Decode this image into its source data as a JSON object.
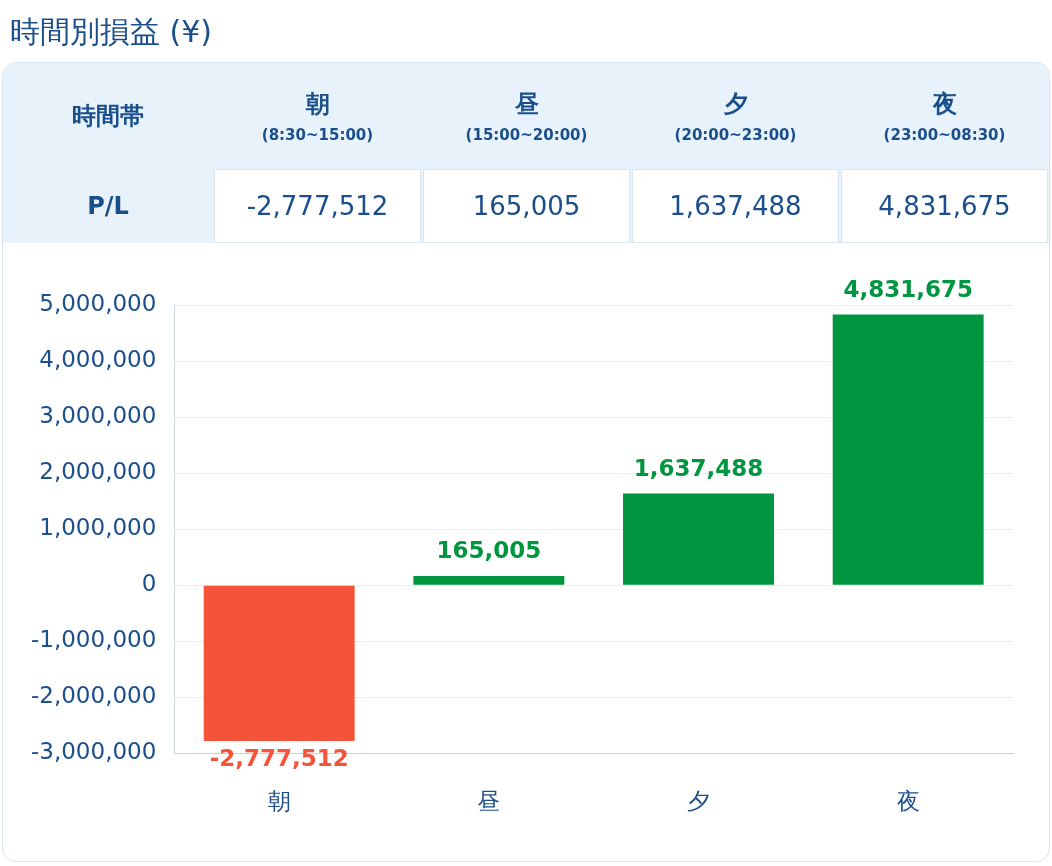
{
  "chart_data": {
    "type": "bar",
    "title": "時間別損益 (¥)",
    "categories": [
      "朝",
      "昼",
      "夕",
      "夜"
    ],
    "values": [
      -2777512,
      165005,
      1637488,
      4831675
    ],
    "value_labels": [
      "-2,777,512",
      "165,005",
      "1,637,488",
      "4,831,675"
    ],
    "colors": [
      "#f4553a",
      "#00963f",
      "#00963f",
      "#00963f"
    ],
    "ylim": [
      -3000000,
      5000000
    ],
    "yticks": [
      {
        "value": -3000000,
        "label": "-3,000,000"
      },
      {
        "value": -2000000,
        "label": "-2,000,000"
      },
      {
        "value": -1000000,
        "label": "-1,000,000"
      },
      0,
      {
        "value": 1000000,
        "label": "1,000,000"
      },
      {
        "value": 2000000,
        "label": "2,000,000"
      },
      {
        "value": 3000000,
        "label": "3,000,000"
      },
      {
        "value": 4000000,
        "label": "4,000,000"
      },
      {
        "value": 5000000,
        "label": "5,000,000"
      }
    ],
    "grid": "y",
    "legend": false,
    "annotations": [
      "時間帯",
      "P/L",
      "(8:30~15:00)",
      "(15:00~20:00)",
      "(20:00~23:00)",
      "(23:00~08:30)"
    ]
  }
}
